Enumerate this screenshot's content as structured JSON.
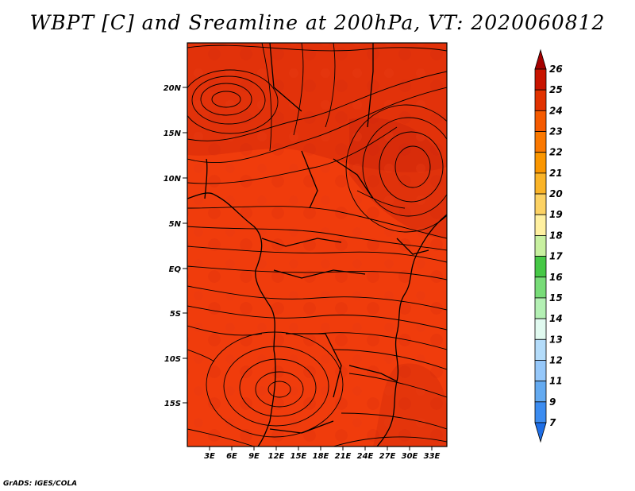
{
  "title": "WBPT [C] and Sreamline at 200hPa, VT: 2020060812",
  "credit": "GrADS: IGES/COLA",
  "lat_labels": [
    "20N",
    "15N",
    "10N",
    "5N",
    "EQ",
    "5S",
    "10S",
    "15S"
  ],
  "lon_labels": [
    "3E",
    "6E",
    "9E",
    "12E",
    "15E",
    "18E",
    "21E",
    "24E",
    "27E",
    "30E",
    "33E"
  ],
  "colorbar": {
    "labels": [
      "26",
      "25",
      "24",
      "23",
      "22",
      "21",
      "20",
      "19",
      "18",
      "17",
      "16",
      "15",
      "14",
      "13",
      "12",
      "11",
      "9",
      "7"
    ],
    "colors": [
      "#a50000",
      "#c81400",
      "#e13200",
      "#f55a00",
      "#fa7800",
      "#fa9600",
      "#fab428",
      "#fcd264",
      "#fff0a0",
      "#c8f0a0",
      "#46c846",
      "#78dc78",
      "#b4f0b4",
      "#e1faf0",
      "#b4dcfa",
      "#96c8fa",
      "#64aaf0",
      "#3c8cf0",
      "#1e6ee6"
    ]
  }
}
